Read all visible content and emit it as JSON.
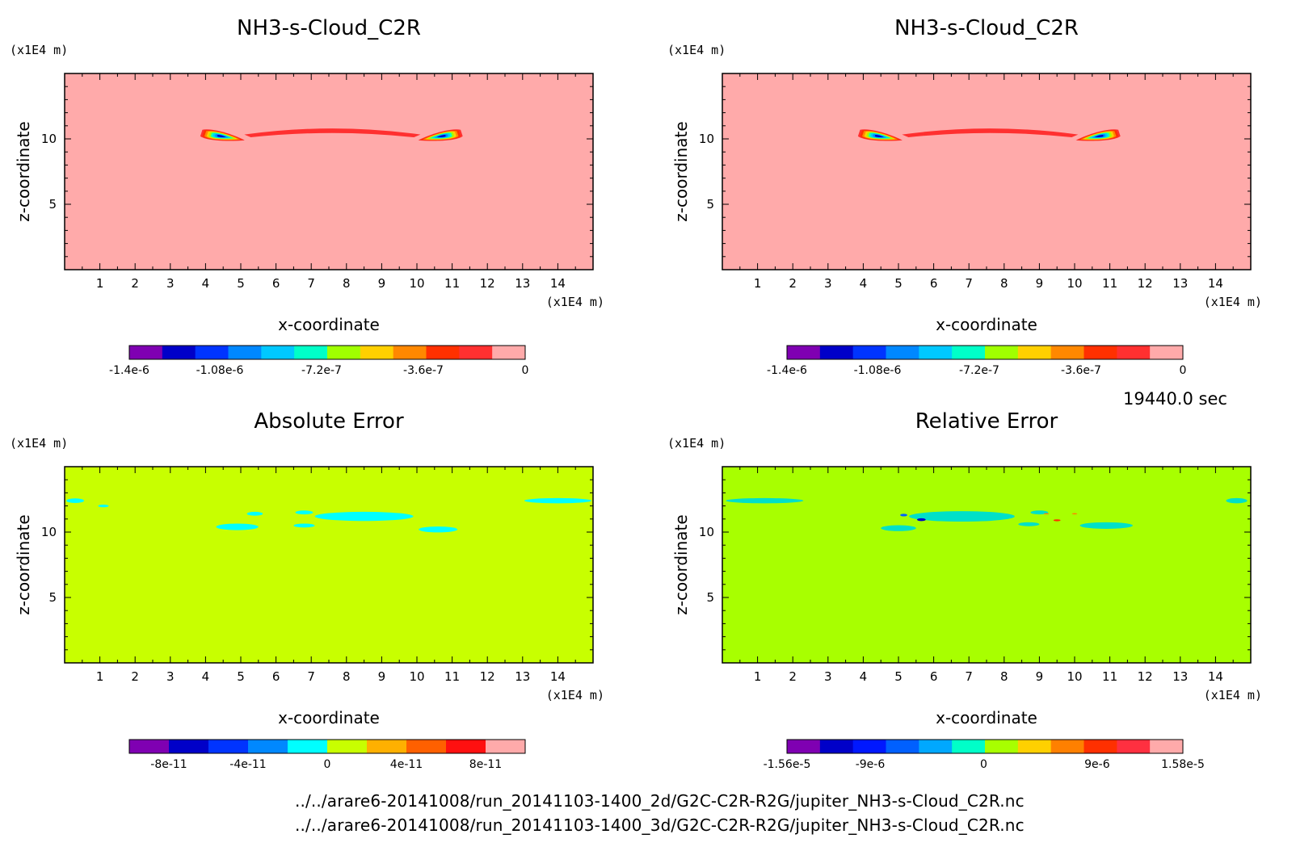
{
  "time_label": "19440.0 sec",
  "footer_lines": [
    "../../arare6-20141008/run_20141103-1400_2d/G2C-C2R-R2G/jupiter_NH3-s-Cloud_C2R.nc",
    "../../arare6-20141008/run_20141103-1400_3d/G2C-C2R-R2G/jupiter_NH3-s-Cloud_C2R.nc"
  ],
  "chart_data": [
    {
      "type": "heatmap",
      "title": "NH3-s-Cloud_C2R",
      "xlabel": "x-coordinate",
      "ylabel": "z-coordinate",
      "x_unit": "(x1E4 m)",
      "z_unit": "(x1E4 m)",
      "xlim": [
        0,
        15
      ],
      "ylim": [
        0,
        15
      ],
      "x_ticks": [
        1,
        2,
        3,
        4,
        5,
        6,
        7,
        8,
        9,
        10,
        11,
        12,
        13,
        14
      ],
      "y_ticks": [
        5,
        10
      ],
      "background_color": "#ffaaaa",
      "colorbar": {
        "colors": [
          "#7f00b2",
          "#0000c8",
          "#0034ff",
          "#0088ff",
          "#00c8ff",
          "#00ffc8",
          "#a0ff00",
          "#ffd000",
          "#ff8800",
          "#ff3000",
          "#ff3030",
          "#ffaaaa"
        ],
        "range": [
          -1.4e-06,
          0
        ],
        "tick_labels": [
          "-1.4e-6",
          "-1.08e-6",
          "-7.2e-7",
          "-3.6e-7",
          "0"
        ],
        "tick_values": [
          -1.4e-06,
          -1.08e-06,
          -7.2e-07,
          -3.6e-07,
          0
        ]
      },
      "features": [
        {
          "kind": "lobe",
          "x": 4.45,
          "z": 10.2,
          "w": 1.2,
          "h": 0.9,
          "dir": "right",
          "value": -1.3e-06
        },
        {
          "kind": "lobe",
          "x": 10.7,
          "z": 10.2,
          "w": 1.2,
          "h": 0.9,
          "dir": "left",
          "value": -1.3e-06
        },
        {
          "kind": "arc",
          "x": 7.6,
          "z": 10.6,
          "w": 5.0,
          "h": 0.6,
          "value": -1.5e-07
        }
      ]
    },
    {
      "type": "heatmap",
      "title": "NH3-s-Cloud_C2R",
      "xlabel": "x-coordinate",
      "ylabel": "z-coordinate",
      "x_unit": "(x1E4 m)",
      "z_unit": "(x1E4 m)",
      "xlim": [
        0,
        15
      ],
      "ylim": [
        0,
        15
      ],
      "x_ticks": [
        1,
        2,
        3,
        4,
        5,
        6,
        7,
        8,
        9,
        10,
        11,
        12,
        13,
        14
      ],
      "y_ticks": [
        5,
        10
      ],
      "background_color": "#ffaaaa",
      "colorbar": {
        "colors": [
          "#7f00b2",
          "#0000c8",
          "#0034ff",
          "#0088ff",
          "#00c8ff",
          "#00ffc8",
          "#a0ff00",
          "#ffd000",
          "#ff8800",
          "#ff3000",
          "#ff3030",
          "#ffaaaa"
        ],
        "range": [
          -1.4e-06,
          0
        ],
        "tick_labels": [
          "-1.4e-6",
          "-1.08e-6",
          "-7.2e-7",
          "-3.6e-7",
          "0"
        ],
        "tick_values": [
          -1.4e-06,
          -1.08e-06,
          -7.2e-07,
          -3.6e-07,
          0
        ]
      },
      "features": [
        {
          "kind": "lobe",
          "x": 4.45,
          "z": 10.2,
          "w": 1.2,
          "h": 0.9,
          "dir": "right",
          "value": -1.3e-06
        },
        {
          "kind": "lobe",
          "x": 10.7,
          "z": 10.2,
          "w": 1.2,
          "h": 0.9,
          "dir": "left",
          "value": -1.3e-06
        },
        {
          "kind": "arc",
          "x": 7.6,
          "z": 10.6,
          "w": 5.0,
          "h": 0.6,
          "value": -1.5e-07
        }
      ]
    },
    {
      "type": "heatmap",
      "title": "Absolute Error",
      "xlabel": "x-coordinate",
      "ylabel": "z-coordinate",
      "x_unit": "(x1E4 m)",
      "z_unit": "(x1E4 m)",
      "xlim": [
        0,
        15
      ],
      "ylim": [
        0,
        15
      ],
      "x_ticks": [
        1,
        2,
        3,
        4,
        5,
        6,
        7,
        8,
        9,
        10,
        11,
        12,
        13,
        14
      ],
      "y_ticks": [
        5,
        10
      ],
      "background_color": "#c8ff00",
      "colorbar": {
        "colors": [
          "#7f00b2",
          "#0000c8",
          "#0034ff",
          "#0088ff",
          "#00ffff",
          "#c8ff00",
          "#ffb000",
          "#ff6000",
          "#ff1010",
          "#ffaaaa"
        ],
        "range": [
          -1e-10,
          1e-10
        ],
        "tick_labels": [
          "-8e-11",
          "-4e-11",
          "0",
          "4e-11",
          "8e-11"
        ],
        "tick_values": [
          -8e-11,
          -4e-11,
          0,
          4e-11,
          8e-11
        ]
      },
      "features": [
        {
          "kind": "blob",
          "x": 0.3,
          "z": 12.4,
          "w": 0.5,
          "h": 0.35,
          "color": "#00ffff"
        },
        {
          "kind": "blob",
          "x": 1.1,
          "z": 12.0,
          "w": 0.3,
          "h": 0.2,
          "color": "#00ffff"
        },
        {
          "kind": "blob",
          "x": 5.4,
          "z": 11.4,
          "w": 0.45,
          "h": 0.3,
          "color": "#00ffff"
        },
        {
          "kind": "blob",
          "x": 4.9,
          "z": 10.4,
          "w": 1.2,
          "h": 0.5,
          "color": "#00ffff"
        },
        {
          "kind": "blob",
          "x": 6.8,
          "z": 11.5,
          "w": 0.5,
          "h": 0.3,
          "color": "#00ffff"
        },
        {
          "kind": "blob",
          "x": 6.8,
          "z": 10.5,
          "w": 0.6,
          "h": 0.3,
          "color": "#00ffff"
        },
        {
          "kind": "blob",
          "x": 8.5,
          "z": 11.2,
          "w": 2.8,
          "h": 0.7,
          "color": "#00ffff"
        },
        {
          "kind": "blob",
          "x": 10.6,
          "z": 10.2,
          "w": 1.1,
          "h": 0.45,
          "color": "#00ffff"
        },
        {
          "kind": "blob",
          "x": 14.0,
          "z": 12.4,
          "w": 1.9,
          "h": 0.4,
          "color": "#00ffff"
        }
      ]
    },
    {
      "type": "heatmap",
      "title": "Relative Error",
      "xlabel": "x-coordinate",
      "ylabel": "z-coordinate",
      "x_unit": "(x1E4 m)",
      "z_unit": "(x1E4 m)",
      "xlim": [
        0,
        15
      ],
      "ylim": [
        0,
        15
      ],
      "x_ticks": [
        1,
        2,
        3,
        4,
        5,
        6,
        7,
        8,
        9,
        10,
        11,
        12,
        13,
        14
      ],
      "y_ticks": [
        5,
        10
      ],
      "background_color": "#a8ff00",
      "colorbar": {
        "colors": [
          "#7f00b2",
          "#0000c8",
          "#0018ff",
          "#0060ff",
          "#00a8ff",
          "#00ffc8",
          "#a8ff00",
          "#ffd000",
          "#ff8000",
          "#ff3000",
          "#ff3040",
          "#ffaaaa"
        ],
        "range": [
          -1.56e-05,
          1.58e-05
        ],
        "tick_labels": [
          "-1.56e-5",
          "-9e-6",
          "0",
          "9e-6",
          "1.58e-5"
        ],
        "tick_values": [
          -1.56e-05,
          -9e-06,
          0,
          9e-06,
          1.58e-05
        ]
      },
      "features": [
        {
          "kind": "blob",
          "x": 1.2,
          "z": 12.4,
          "w": 2.2,
          "h": 0.4,
          "color": "#00e0c8"
        },
        {
          "kind": "blob",
          "x": 5.0,
          "z": 10.3,
          "w": 1.0,
          "h": 0.45,
          "color": "#00e0c8"
        },
        {
          "kind": "blob",
          "x": 6.8,
          "z": 11.2,
          "w": 3.0,
          "h": 0.8,
          "color": "#00e0c8"
        },
        {
          "kind": "blob",
          "x": 8.7,
          "z": 10.6,
          "w": 0.6,
          "h": 0.3,
          "color": "#00e0c8"
        },
        {
          "kind": "blob",
          "x": 9.0,
          "z": 11.5,
          "w": 0.5,
          "h": 0.3,
          "color": "#00e0c8"
        },
        {
          "kind": "blob",
          "x": 10.9,
          "z": 10.5,
          "w": 1.5,
          "h": 0.5,
          "color": "#00e0c8"
        },
        {
          "kind": "blob",
          "x": 14.6,
          "z": 12.4,
          "w": 0.6,
          "h": 0.4,
          "color": "#00e0c8"
        },
        {
          "kind": "blob",
          "x": 5.15,
          "z": 11.3,
          "w": 0.2,
          "h": 0.2,
          "color": "#0060ff"
        },
        {
          "kind": "blob",
          "x": 5.65,
          "z": 10.95,
          "w": 0.25,
          "h": 0.22,
          "color": "#0000c8"
        },
        {
          "kind": "blob",
          "x": 9.5,
          "z": 10.9,
          "w": 0.2,
          "h": 0.15,
          "color": "#ff3000"
        },
        {
          "kind": "blob",
          "x": 9.2,
          "z": 11.4,
          "w": 0.15,
          "h": 0.1,
          "color": "#ff8000"
        },
        {
          "kind": "blob",
          "x": 10.0,
          "z": 11.4,
          "w": 0.15,
          "h": 0.1,
          "color": "#ff8000"
        }
      ]
    }
  ]
}
